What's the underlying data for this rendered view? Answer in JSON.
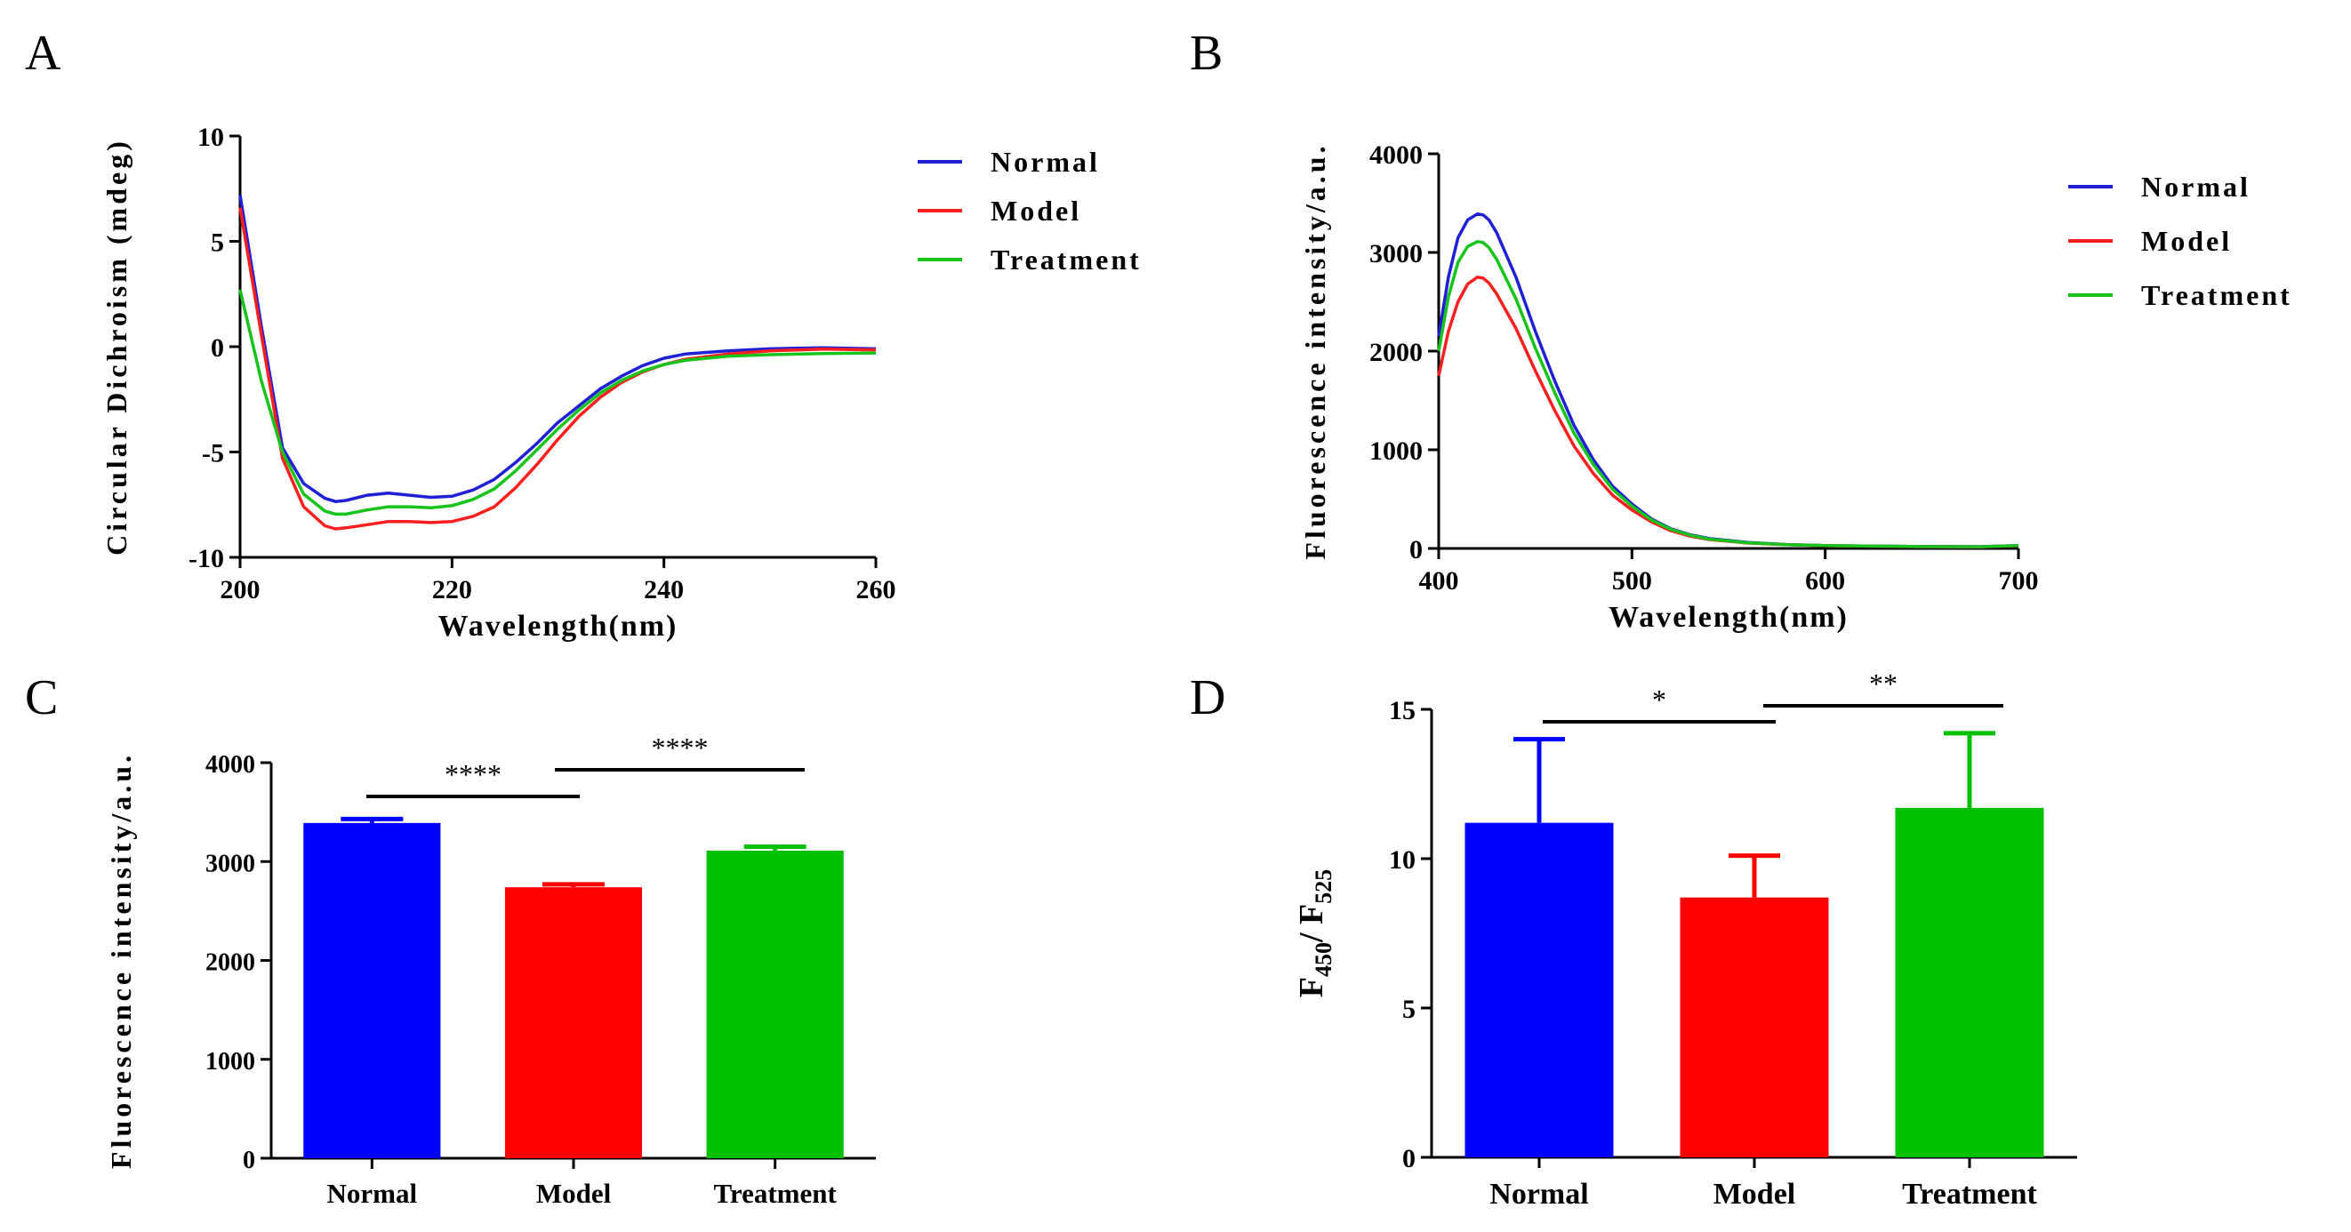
{
  "panels": {
    "a": {
      "letter": "A"
    },
    "b": {
      "letter": "B"
    },
    "c": {
      "letter": "C"
    },
    "d": {
      "letter": "D"
    }
  },
  "colors": {
    "Normal": "#1f1fd6",
    "Model": "#ff1f1f",
    "Treatment": "#16c41c",
    "blue_bar": "#0000ff",
    "red_bar": "#ff0000",
    "green_bar": "#00c000"
  },
  "chart_data": [
    {
      "id": "A",
      "type": "line",
      "title": "",
      "xlabel": "Wavelength(nm)",
      "ylabel": "Circular Dichroism (mdeg)",
      "xlim": [
        200,
        260
      ],
      "ylim": [
        -10,
        10
      ],
      "xticks": [
        200,
        220,
        240,
        260
      ],
      "yticks": [
        -10,
        -5,
        0,
        5,
        10
      ],
      "legend": "top-right, outside",
      "series": [
        {
          "name": "Normal",
          "x": [
            200,
            202,
            204,
            206,
            208,
            209,
            210,
            212,
            214,
            216,
            218,
            220,
            222,
            224,
            226,
            228,
            230,
            232,
            234,
            236,
            238,
            240,
            242,
            246,
            250,
            255,
            260
          ],
          "values": [
            7.2,
            1.0,
            -4.8,
            -6.5,
            -7.2,
            -7.35,
            -7.3,
            -7.05,
            -6.95,
            -7.05,
            -7.15,
            -7.1,
            -6.8,
            -6.3,
            -5.5,
            -4.6,
            -3.6,
            -2.8,
            -2.0,
            -1.4,
            -0.9,
            -0.55,
            -0.35,
            -0.2,
            -0.1,
            -0.05,
            -0.1
          ]
        },
        {
          "name": "Model",
          "x": [
            200,
            202,
            204,
            206,
            208,
            209,
            210,
            212,
            214,
            216,
            218,
            220,
            222,
            224,
            226,
            228,
            230,
            232,
            234,
            236,
            238,
            240,
            242,
            246,
            250,
            255,
            260
          ],
          "values": [
            6.6,
            0.6,
            -5.3,
            -7.6,
            -8.5,
            -8.65,
            -8.6,
            -8.45,
            -8.3,
            -8.3,
            -8.35,
            -8.3,
            -8.05,
            -7.6,
            -6.7,
            -5.6,
            -4.4,
            -3.3,
            -2.4,
            -1.7,
            -1.2,
            -0.85,
            -0.6,
            -0.35,
            -0.2,
            -0.12,
            -0.15
          ]
        },
        {
          "name": "Treatment",
          "x": [
            200,
            202,
            204,
            206,
            208,
            209,
            210,
            212,
            214,
            216,
            218,
            220,
            222,
            224,
            226,
            228,
            230,
            232,
            234,
            236,
            238,
            240,
            242,
            246,
            250,
            255,
            260
          ],
          "values": [
            2.7,
            -1.6,
            -5.0,
            -7.0,
            -7.8,
            -7.95,
            -7.95,
            -7.75,
            -7.6,
            -7.6,
            -7.65,
            -7.55,
            -7.25,
            -6.75,
            -5.9,
            -4.9,
            -3.9,
            -3.0,
            -2.2,
            -1.6,
            -1.15,
            -0.85,
            -0.65,
            -0.45,
            -0.38,
            -0.33,
            -0.3
          ]
        }
      ]
    },
    {
      "id": "B",
      "type": "line",
      "title": "",
      "xlabel": "Wavelength(nm)",
      "ylabel": "Fluorescence intensity/a.u.",
      "xlim": [
        400,
        700
      ],
      "ylim": [
        0,
        4000
      ],
      "xticks": [
        400,
        500,
        600,
        700
      ],
      "yticks": [
        0,
        1000,
        2000,
        3000,
        4000
      ],
      "legend": "top-right, outside",
      "series": [
        {
          "name": "Normal",
          "x": [
            400,
            405,
            410,
            415,
            420,
            423,
            426,
            430,
            440,
            450,
            460,
            470,
            480,
            490,
            500,
            510,
            520,
            530,
            540,
            560,
            580,
            600,
            620,
            650,
            680,
            700
          ],
          "values": [
            2150,
            2750,
            3150,
            3330,
            3390,
            3380,
            3330,
            3200,
            2750,
            2200,
            1700,
            1250,
            900,
            630,
            450,
            300,
            200,
            140,
            100,
            60,
            40,
            30,
            25,
            20,
            18,
            30
          ]
        },
        {
          "name": "Model",
          "x": [
            400,
            405,
            410,
            415,
            420,
            423,
            426,
            430,
            440,
            450,
            460,
            470,
            480,
            490,
            500,
            510,
            520,
            530,
            540,
            560,
            580,
            600,
            620,
            650,
            680,
            700
          ],
          "values": [
            1750,
            2200,
            2500,
            2680,
            2750,
            2740,
            2690,
            2580,
            2230,
            1800,
            1400,
            1040,
            760,
            540,
            390,
            270,
            180,
            125,
            90,
            55,
            38,
            28,
            23,
            18,
            16,
            28
          ]
        },
        {
          "name": "Treatment",
          "x": [
            400,
            405,
            410,
            415,
            420,
            423,
            426,
            430,
            440,
            450,
            460,
            470,
            480,
            490,
            500,
            510,
            520,
            530,
            540,
            560,
            580,
            600,
            620,
            650,
            680,
            700
          ],
          "values": [
            2000,
            2550,
            2900,
            3060,
            3110,
            3100,
            3050,
            2930,
            2530,
            2030,
            1580,
            1170,
            850,
            600,
            430,
            290,
            195,
            135,
            95,
            58,
            39,
            29,
            24,
            19,
            17,
            29
          ]
        }
      ]
    },
    {
      "id": "C",
      "type": "bar",
      "title": "",
      "xlabel": "",
      "ylabel": "Fluorescence intensity/a.u.",
      "ylim": [
        0,
        4000
      ],
      "yticks": [
        0,
        1000,
        2000,
        3000,
        4000
      ],
      "categories": [
        "Normal",
        "Model",
        "Treatment"
      ],
      "values": [
        3390,
        2740,
        3110
      ],
      "errors": [
        40,
        30,
        40
      ],
      "significance": [
        {
          "from": 0,
          "to": 1,
          "label": "****"
        },
        {
          "from": 1,
          "to": 2,
          "label": "****"
        }
      ]
    },
    {
      "id": "D",
      "type": "bar",
      "title": "",
      "xlabel": "",
      "ylabel": "F450/ F525",
      "ylabel_parts": {
        "main1": "F",
        "sub1": "450",
        "mid": "/ F",
        "sub2": "525"
      },
      "ylim": [
        0,
        15
      ],
      "yticks": [
        0,
        5,
        10,
        15
      ],
      "categories": [
        "Normal",
        "Model",
        "Treatment"
      ],
      "values": [
        11.2,
        8.7,
        11.7
      ],
      "errors": [
        2.8,
        1.4,
        2.5
      ],
      "significance": [
        {
          "from": 0,
          "to": 1,
          "label": "*"
        },
        {
          "from": 1,
          "to": 2,
          "label": "**"
        }
      ]
    }
  ]
}
